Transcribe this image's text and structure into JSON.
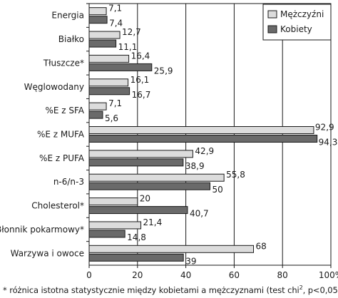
{
  "chart_data": {
    "type": "bar",
    "orientation": "horizontal",
    "categories": [
      "Energia",
      "Białko",
      "Tłuszcze*",
      "Węglowodany",
      "%E z SFA",
      "%E z MUFA",
      "%E z PUFA",
      "n-6/n-3",
      "Cholesterol*",
      "Błonnik pokarmowy*",
      "Warzywa i owoce"
    ],
    "series": [
      {
        "name": "Mężczyźni",
        "values": [
          7.1,
          12.7,
          16.4,
          16.1,
          7.1,
          92.9,
          42.9,
          55.8,
          20,
          21.4,
          68
        ],
        "labels": [
          "7,1",
          "12,7",
          "16,4",
          "16,1",
          "7,1",
          "92,9",
          "42,9",
          "55,8",
          "20",
          "21,4",
          "68"
        ]
      },
      {
        "name": "Kobiety",
        "values": [
          7.4,
          11.1,
          25.9,
          16.7,
          5.6,
          94.3,
          38.9,
          50,
          40.7,
          14.8,
          39
        ],
        "labels": [
          "7,4",
          "11,1",
          "25,9",
          "16,7",
          "5,6",
          "94,3",
          "38,9",
          "50",
          "40,7",
          "14,8",
          "39"
        ]
      }
    ],
    "xlim": [
      0,
      100
    ],
    "xticks": [
      "0",
      "20",
      "40",
      "60",
      "80",
      "100%"
    ],
    "grid": true,
    "legend_position": "top-right",
    "footnote": "* różnica istotna statystycznie między kobietami a mężczyznami (test chi",
    "footnote_sup": "2",
    "footnote_tail": ", p<0,05)"
  },
  "colors": {
    "men_fill": "#dcdcdc",
    "women_fill": "#6a6a6a",
    "stroke": "#1a1a1a"
  }
}
